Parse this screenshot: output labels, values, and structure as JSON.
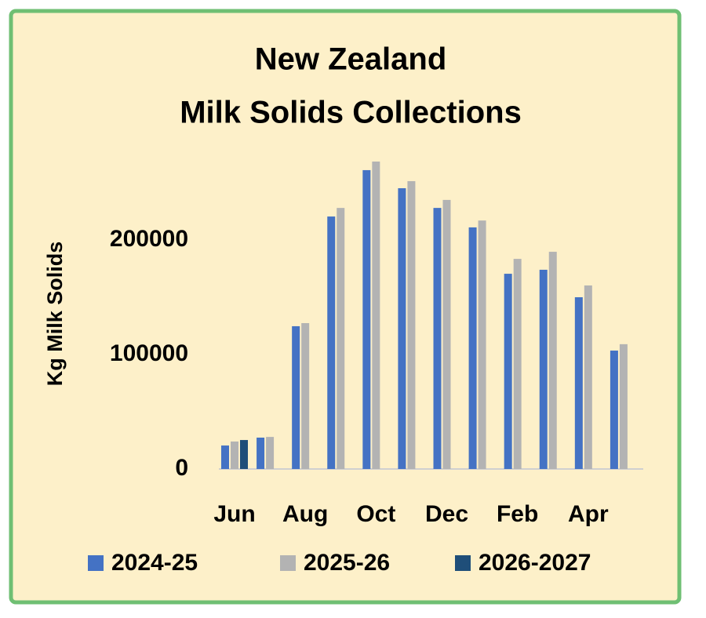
{
  "chart_data": {
    "type": "bar",
    "title": [
      "New Zealand",
      "Milk Solids Collections"
    ],
    "y_label": "Kg Milk Solids",
    "categories": [
      "Jun",
      null,
      "Aug",
      null,
      "Oct",
      null,
      "Dec",
      null,
      "Feb",
      null,
      "Apr",
      null
    ],
    "series": [
      {
        "name": "2024-25",
        "color": "#4472c4",
        "values": [
          20500,
          27400,
          124700,
          220500,
          261000,
          245200,
          228000,
          211000,
          170500,
          174000,
          150000,
          103400
        ]
      },
      {
        "name": "2025-26",
        "color": "#b3b3b3",
        "values": [
          24000,
          28000,
          127400,
          228000,
          268500,
          251400,
          235000,
          217000,
          183500,
          189700,
          160300,
          109000
        ]
      },
      {
        "name": "2026-2027",
        "color": "#1f4e79",
        "values": [
          25300,
          null,
          null,
          null,
          null,
          null,
          null,
          null,
          null,
          null,
          null,
          null
        ]
      }
    ],
    "ylim": [
      0,
      300000
    ],
    "yticks": [
      0,
      100000,
      200000
    ],
    "grid": false,
    "legend": "bottom"
  }
}
